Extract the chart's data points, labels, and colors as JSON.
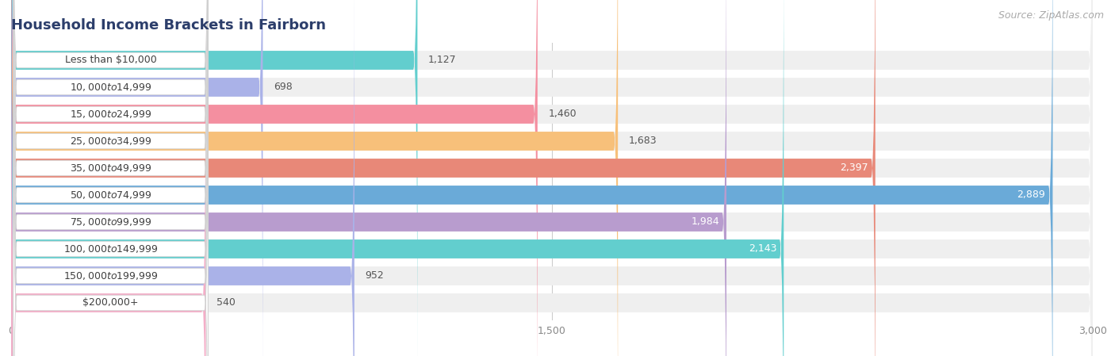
{
  "title": "Household Income Brackets in Fairborn",
  "source": "Source: ZipAtlas.com",
  "categories": [
    "Less than $10,000",
    "$10,000 to $14,999",
    "$15,000 to $24,999",
    "$25,000 to $34,999",
    "$35,000 to $49,999",
    "$50,000 to $74,999",
    "$75,000 to $99,999",
    "$100,000 to $149,999",
    "$150,000 to $199,999",
    "$200,000+"
  ],
  "values": [
    1127,
    698,
    1460,
    1683,
    2397,
    2889,
    1984,
    2143,
    952,
    540
  ],
  "bar_colors": [
    "#62cece",
    "#aab2e8",
    "#f48fa0",
    "#f7c07a",
    "#e88878",
    "#6aaad8",
    "#b89cce",
    "#62cece",
    "#aab2e8",
    "#f4aec8"
  ],
  "bar_label_colors_inside": [
    false,
    false,
    false,
    false,
    true,
    true,
    true,
    true,
    false,
    false
  ],
  "xlim": [
    0,
    3000
  ],
  "xticks": [
    0,
    1500,
    3000
  ],
  "bg_color": "#ffffff",
  "bar_bg_color": "#efefef",
  "title_fontsize": 13,
  "source_fontsize": 9,
  "label_fontsize": 9,
  "value_fontsize": 9
}
